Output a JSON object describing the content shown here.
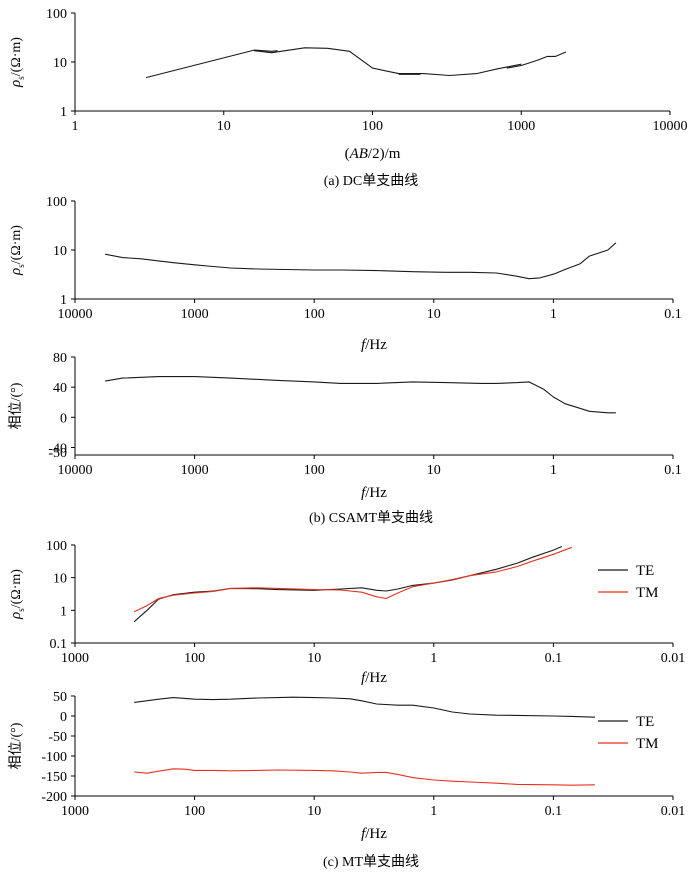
{
  "colors": {
    "axis": "#000000",
    "te": "#1a1a1a",
    "tm": "#e8321e",
    "dc": "#1a1a1a",
    "csamt": "#1a1a1a"
  },
  "chart_data": [
    {
      "id": "dc",
      "type": "line",
      "caption": "(a) DC单支曲线",
      "xscale": "log",
      "yscale": "log",
      "xlim": [
        1,
        10000
      ],
      "ylim": [
        1,
        100
      ],
      "xticks": [
        1,
        10,
        100,
        1000,
        10000
      ],
      "xticklabels": [
        "1",
        "10",
        "100",
        "1000",
        "10000"
      ],
      "yticks": [
        1,
        10,
        100
      ],
      "yticklabels": [
        "1",
        "10",
        "100"
      ],
      "xlabel_parts": [
        "(",
        "AB",
        "/2)/m"
      ],
      "ylabel_parts": [
        "ρ",
        "s",
        "/(Ω·m)"
      ],
      "series": [
        {
          "color_key": "dc",
          "points": [
            [
              3,
              4.8
            ],
            [
              16,
              17.5
            ],
            [
              21,
              16.5
            ],
            [
              23,
              17
            ]
          ]
        },
        {
          "color_key": "dc",
          "points": [
            [
              16,
              17
            ],
            [
              21,
              15.5
            ],
            [
              35,
              19.5
            ],
            [
              50,
              19
            ],
            [
              70,
              16.5
            ],
            [
              100,
              7.5
            ],
            [
              150,
              5.8
            ],
            [
              220,
              5.8
            ],
            [
              330,
              5.3
            ],
            [
              500,
              5.8
            ],
            [
              700,
              7.3
            ],
            [
              1000,
              9
            ]
          ]
        },
        {
          "color_key": "dc",
          "points": [
            [
              150,
              5.6
            ],
            [
              210,
              5.6
            ]
          ]
        },
        {
          "color_key": "dc",
          "points": [
            [
              800,
              7.5
            ],
            [
              1000,
              8.5
            ],
            [
              1300,
              11
            ],
            [
              1500,
              13
            ],
            [
              1700,
              13
            ],
            [
              2000,
              16
            ]
          ]
        }
      ]
    },
    {
      "id": "csamt-rho",
      "type": "line",
      "xscale": "log",
      "yscale": "log",
      "xreversed": true,
      "xlim": [
        10000,
        0.1
      ],
      "ylim": [
        1,
        100
      ],
      "xticks": [
        10000,
        1000,
        100,
        10,
        1,
        0.1
      ],
      "xticklabels": [
        "10000",
        "1000",
        "100",
        "10",
        "1",
        "0.1"
      ],
      "yticks": [
        1,
        10,
        100
      ],
      "yticklabels": [
        "1",
        "10",
        "100"
      ],
      "xlabel_parts": [
        "f",
        "/Hz"
      ],
      "ylabel_parts": [
        "ρ",
        "s",
        "/(Ω·m)"
      ],
      "series": [
        {
          "color_key": "csamt",
          "points": [
            [
              5600,
              8.2
            ],
            [
              4000,
              7
            ],
            [
              2800,
              6.6
            ],
            [
              2000,
              6
            ],
            [
              1500,
              5.5
            ],
            [
              1000,
              5
            ],
            [
              700,
              4.6
            ],
            [
              500,
              4.3
            ],
            [
              300,
              4.1
            ],
            [
              100,
              3.9
            ],
            [
              60,
              3.9
            ],
            [
              30,
              3.8
            ],
            [
              15,
              3.6
            ],
            [
              8,
              3.5
            ],
            [
              5,
              3.5
            ],
            [
              3,
              3.4
            ],
            [
              2,
              2.9
            ],
            [
              1.6,
              2.6
            ],
            [
              1.3,
              2.7
            ],
            [
              1,
              3.2
            ],
            [
              0.8,
              4
            ],
            [
              0.6,
              5.2
            ],
            [
              0.5,
              7.5
            ],
            [
              0.35,
              10
            ],
            [
              0.3,
              14
            ]
          ]
        }
      ]
    },
    {
      "id": "csamt-phase",
      "type": "line",
      "xscale": "log",
      "yscale": "linear",
      "xreversed": true,
      "xlim": [
        10000,
        0.1
      ],
      "ylim": [
        -50,
        80
      ],
      "xticks": [
        10000,
        1000,
        100,
        10,
        1,
        0.1
      ],
      "xticklabels": [
        "10000",
        "1000",
        "100",
        "10",
        "1",
        "0.1"
      ],
      "yticks": [
        80,
        40,
        0,
        -40
      ],
      "yticklabels": [
        "80",
        "40",
        "0",
        "-40"
      ],
      "ylabel_text": "-50",
      "xlabel_parts": [
        "f",
        "/Hz"
      ],
      "ylabel_parts": [
        "相位/(°)"
      ],
      "series": [
        {
          "color_key": "csamt",
          "points": [
            [
              5600,
              48
            ],
            [
              4000,
              52
            ],
            [
              2000,
              54
            ],
            [
              1000,
              54
            ],
            [
              500,
              52
            ],
            [
              200,
              49
            ],
            [
              100,
              47
            ],
            [
              60,
              45
            ],
            [
              30,
              45
            ],
            [
              15,
              47
            ],
            [
              8,
              46
            ],
            [
              4,
              45
            ],
            [
              3,
              45
            ],
            [
              2,
              46
            ],
            [
              1.6,
              47
            ],
            [
              1.2,
              37
            ],
            [
              1,
              27
            ],
            [
              0.8,
              18
            ],
            [
              0.6,
              12
            ],
            [
              0.5,
              8
            ],
            [
              0.35,
              6
            ],
            [
              0.3,
              6
            ]
          ]
        }
      ]
    },
    {
      "id": "mt-rho",
      "type": "line",
      "caption": "(c) MT单支曲线",
      "xscale": "log",
      "yscale": "log",
      "xreversed": true,
      "xlim": [
        1000,
        0.01
      ],
      "ylim": [
        0.1,
        100
      ],
      "xticks": [
        1000,
        100,
        10,
        1,
        0.1,
        0.01
      ],
      "xticklabels": [
        "1000",
        "100",
        "10",
        "1",
        "0.1",
        "0.01"
      ],
      "yticks": [
        0.1,
        1,
        10,
        100
      ],
      "yticklabels": [
        "0.1",
        "1",
        "10",
        "100"
      ],
      "xlabel_parts": [
        "f",
        "/Hz"
      ],
      "ylabel_parts": [
        "ρ",
        "s",
        "/(Ω·m)"
      ],
      "legend": "right",
      "series": [
        {
          "name": "TE",
          "color_key": "te",
          "points": [
            [
              320,
              0.45
            ],
            [
              250,
              1
            ],
            [
              200,
              2.2
            ],
            [
              150,
              3
            ],
            [
              100,
              3.6
            ],
            [
              70,
              3.9
            ],
            [
              50,
              4.7
            ],
            [
              30,
              4.6
            ],
            [
              20,
              4.3
            ],
            [
              10,
              4.1
            ],
            [
              6,
              4.5
            ],
            [
              4,
              4.9
            ],
            [
              3,
              4.1
            ],
            [
              2.5,
              3.9
            ],
            [
              2,
              4.5
            ],
            [
              1.5,
              5.8
            ],
            [
              1,
              6.8
            ],
            [
              0.7,
              8.5
            ],
            [
              0.5,
              11.5
            ],
            [
              0.3,
              18
            ],
            [
              0.2,
              28
            ],
            [
              0.15,
              42
            ],
            [
              0.1,
              70
            ],
            [
              0.085,
              90
            ]
          ]
        },
        {
          "name": "TM",
          "color_key": "tm",
          "points": [
            [
              320,
              0.9
            ],
            [
              250,
              1.4
            ],
            [
              200,
              2.3
            ],
            [
              150,
              2.9
            ],
            [
              100,
              3.4
            ],
            [
              70,
              3.8
            ],
            [
              50,
              4.7
            ],
            [
              30,
              4.9
            ],
            [
              20,
              4.7
            ],
            [
              10,
              4.3
            ],
            [
              6,
              4.2
            ],
            [
              4,
              3.6
            ],
            [
              3,
              2.6
            ],
            [
              2.5,
              2.3
            ],
            [
              2,
              3.4
            ],
            [
              1.5,
              5.3
            ],
            [
              1,
              6.8
            ],
            [
              0.7,
              8.8
            ],
            [
              0.5,
              11.5
            ],
            [
              0.3,
              15
            ],
            [
              0.2,
              22
            ],
            [
              0.15,
              32
            ],
            [
              0.1,
              52
            ],
            [
              0.07,
              85
            ]
          ]
        }
      ]
    },
    {
      "id": "mt-phase",
      "type": "line",
      "xscale": "log",
      "yscale": "linear",
      "xreversed": true,
      "xlim": [
        1000,
        0.01
      ],
      "ylim": [
        -200,
        50
      ],
      "xticks": [
        1000,
        100,
        10,
        1,
        0.1,
        0.01
      ],
      "xticklabels": [
        "1000",
        "100",
        "10",
        "1",
        "0.1",
        "0.01"
      ],
      "yticks": [
        50,
        0,
        -50,
        -100,
        -150,
        -200
      ],
      "yticklabels": [
        "50",
        "0",
        "-50",
        "-100",
        "-150",
        "-200"
      ],
      "xlabel_parts": [
        "f",
        "/Hz"
      ],
      "ylabel_parts": [
        "相位/(°)"
      ],
      "legend": "right",
      "series": [
        {
          "name": "TE",
          "color_key": "te",
          "points": [
            [
              320,
              34
            ],
            [
              200,
              42
            ],
            [
              150,
              46
            ],
            [
              120,
              44
            ],
            [
              100,
              42
            ],
            [
              70,
              41
            ],
            [
              50,
              42
            ],
            [
              30,
              45
            ],
            [
              20,
              46
            ],
            [
              15,
              47
            ],
            [
              10,
              46
            ],
            [
              7,
              45
            ],
            [
              5,
              43
            ],
            [
              4,
              38
            ],
            [
              3,
              30
            ],
            [
              2,
              27
            ],
            [
              1.5,
              27
            ],
            [
              1,
              20
            ],
            [
              0.7,
              10
            ],
            [
              0.5,
              5
            ],
            [
              0.3,
              2
            ],
            [
              0.2,
              1.5
            ],
            [
              0.1,
              0
            ],
            [
              0.07,
              -1
            ],
            [
              0.045,
              -3
            ]
          ]
        },
        {
          "name": "TM",
          "color_key": "tm",
          "points": [
            [
              320,
              -140
            ],
            [
              250,
              -143
            ],
            [
              200,
              -138
            ],
            [
              150,
              -132
            ],
            [
              120,
              -133
            ],
            [
              100,
              -136
            ],
            [
              70,
              -136
            ],
            [
              50,
              -137
            ],
            [
              30,
              -136
            ],
            [
              20,
              -135
            ],
            [
              10,
              -136
            ],
            [
              7,
              -137
            ],
            [
              5,
              -140
            ],
            [
              4,
              -143
            ],
            [
              3,
              -141
            ],
            [
              2.5,
              -141
            ],
            [
              2,
              -146
            ],
            [
              1.5,
              -154
            ],
            [
              1,
              -160
            ],
            [
              0.7,
              -163
            ],
            [
              0.5,
              -165
            ],
            [
              0.3,
              -168
            ],
            [
              0.2,
              -171
            ],
            [
              0.1,
              -172
            ],
            [
              0.07,
              -173
            ],
            [
              0.045,
              -172
            ]
          ]
        }
      ]
    }
  ],
  "captions": {
    "b": "(b) CSAMT单支曲线"
  }
}
